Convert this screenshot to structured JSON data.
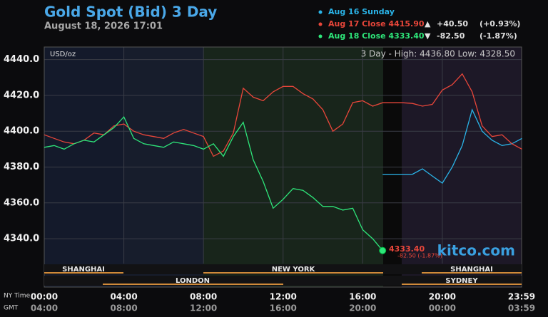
{
  "chart_data": {
    "type": "line",
    "title": "Gold Spot (Bid) 3 Day",
    "subtitle": "August 18, 2026 17:01",
    "unit_label": "USD/oz",
    "range_text": "3 Day - High: 4436.80  Low: 4328.50",
    "brand": "kitco.com",
    "x_row_labels": [
      "NY Time",
      "GMT"
    ],
    "xlim": [
      0,
      23.983
    ],
    "xticks": [
      {
        "value": 0,
        "label": "00:00"
      },
      {
        "value": 4,
        "label": "04:00"
      },
      {
        "value": 8,
        "label": "08:00"
      },
      {
        "value": 12,
        "label": "12:00"
      },
      {
        "value": 16,
        "label": "16:00"
      },
      {
        "value": 20,
        "label": "20:00"
      },
      {
        "value": 23.983,
        "label": "23:59"
      }
    ],
    "gmt_labels": [
      "04:00",
      "08:00",
      "12:00",
      "16:00",
      "20:00",
      "00:00",
      "03:59"
    ],
    "ylim": [
      4313,
      4447
    ],
    "yticks": [
      {
        "value": 4340,
        "label": "4340.0"
      },
      {
        "value": 4360,
        "label": "4360.0"
      },
      {
        "value": 4380,
        "label": "4380.0"
      },
      {
        "value": 4400,
        "label": "4400.0"
      },
      {
        "value": 4420,
        "label": "4420.0"
      },
      {
        "value": 4440,
        "label": "4440.0"
      }
    ],
    "grid": true,
    "sessions": [
      "SHANGHAI",
      "LONDON",
      "NEW YORK",
      "SHANGHAI",
      "SYDNEY"
    ],
    "last_label": {
      "price": "4333.40",
      "change": "-82.50 (-1.87%)"
    },
    "series": [
      {
        "name": "Aug 16 Sunday",
        "color": "#2ab4e8",
        "x": [
          17,
          17.5,
          18,
          18.5,
          19,
          19.5,
          20,
          20.5,
          21,
          21.5,
          22,
          22.5,
          23,
          23.5,
          24
        ],
        "values": [
          4376,
          4376,
          4376,
          4376,
          4379,
          4375,
          4371,
          4380,
          4392,
          4412,
          4400,
          4395,
          4392,
          4393,
          4396
        ]
      },
      {
        "name": "Aug 17 Close 4415.90",
        "color": "#e8463a",
        "arrow": "▲",
        "change": "+40.50",
        "change_pct": "(+0.93%)",
        "x": [
          0,
          0.5,
          1,
          1.5,
          2,
          2.5,
          3,
          3.5,
          4,
          4.5,
          5,
          5.5,
          6,
          6.5,
          7,
          7.5,
          8,
          8.5,
          9,
          9.5,
          10,
          10.5,
          11,
          11.5,
          12,
          12.5,
          13,
          13.5,
          14,
          14.5,
          15,
          15.5,
          16,
          16.5,
          17,
          17.5,
          18,
          18.5,
          19,
          19.5,
          20,
          20.5,
          21,
          21.5,
          22,
          22.5,
          23,
          23.5,
          24
        ],
        "values": [
          4398,
          4396,
          4394,
          4393,
          4395,
          4399,
          4398,
          4403,
          4404,
          4400,
          4398,
          4397,
          4396,
          4399,
          4401,
          4399,
          4397,
          4386,
          4389,
          4399,
          4424,
          4419,
          4417,
          4422,
          4425,
          4425,
          4421,
          4418,
          4412,
          4400,
          4404,
          4416,
          4417,
          4414,
          4415.9,
          4415.9,
          4415.9,
          4415.5,
          4414,
          4415,
          4423,
          4426,
          4432,
          4422,
          4403,
          4397,
          4398,
          4393,
          4390
        ]
      },
      {
        "name": "Aug 18 Close 4333.40",
        "color": "#2ee67a",
        "arrow": "▼",
        "change": "-82.50",
        "change_pct": "(-1.87%)",
        "x": [
          0,
          0.5,
          1,
          1.5,
          2,
          2.5,
          3,
          3.5,
          4,
          4.5,
          5,
          5.5,
          6,
          6.5,
          7,
          7.5,
          8,
          8.5,
          9,
          9.5,
          10,
          10.5,
          11,
          11.5,
          12,
          12.5,
          13,
          13.5,
          14,
          14.5,
          15,
          15.5,
          16,
          16.5,
          17
        ],
        "values": [
          4391,
          4392,
          4390,
          4393,
          4395,
          4394,
          4398,
          4402,
          4408,
          4396,
          4393,
          4392,
          4391,
          4394,
          4393,
          4392,
          4390,
          4393,
          4386,
          4397,
          4405,
          4384,
          4372,
          4357,
          4362,
          4368,
          4367,
          4363,
          4358,
          4358,
          4356,
          4357,
          4345,
          4340,
          4333.4
        ]
      }
    ]
  }
}
